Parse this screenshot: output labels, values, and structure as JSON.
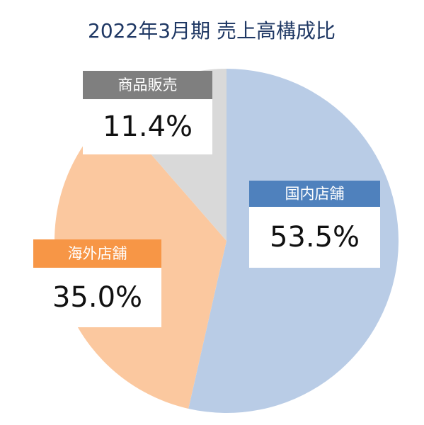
{
  "chart_data": {
    "type": "pie",
    "title": "2022年3月期 売上高構成比",
    "categories": [
      "国内店舗",
      "海外店舗",
      "商品販売"
    ],
    "values": [
      53.5,
      35.0,
      11.4
    ],
    "value_labels": [
      "53.5%",
      "35.0%",
      "11.4%"
    ],
    "colors": [
      "#b9cce6",
      "#fbc89f",
      "#d9d9d9"
    ],
    "label_colors": [
      "#4f81bd",
      "#f79646",
      "#7f7f7f"
    ]
  }
}
